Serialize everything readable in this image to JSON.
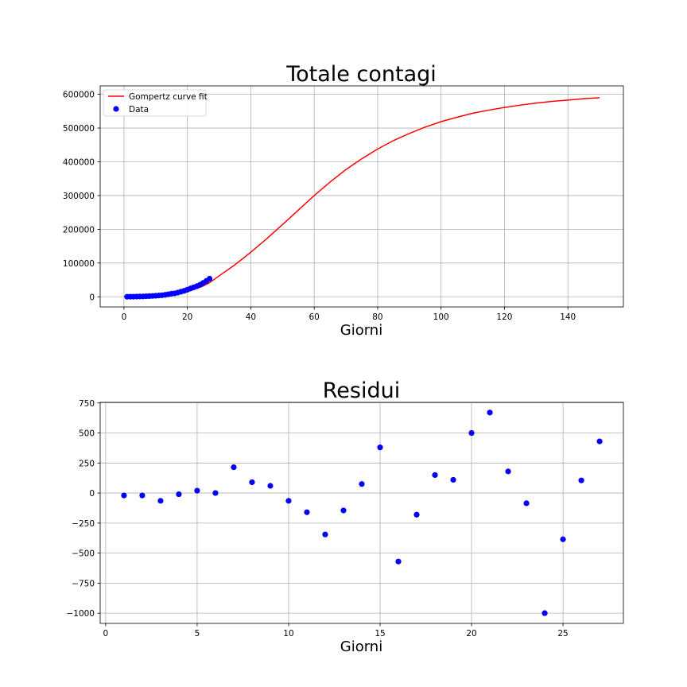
{
  "chart_data": [
    {
      "type": "line",
      "title": "Totale contagi",
      "xlabel": "Giorni",
      "ylabel": "",
      "xlim": [
        -7.5,
        157.5
      ],
      "ylim": [
        -30000,
        625000
      ],
      "xticks": [
        0,
        20,
        40,
        60,
        80,
        100,
        120,
        140
      ],
      "yticks": [
        0,
        100000,
        200000,
        300000,
        400000,
        500000,
        600000
      ],
      "grid": true,
      "legend": "top-left",
      "series": [
        {
          "name": "Gompertz curve fit",
          "kind": "line",
          "color": "#ff0000",
          "x": [
            0,
            5,
            10,
            15,
            20,
            25,
            27,
            30,
            35,
            40,
            45,
            50,
            55,
            60,
            65,
            70,
            75,
            80,
            85,
            90,
            95,
            100,
            105,
            110,
            115,
            120,
            125,
            130,
            135,
            140,
            145,
            150
          ],
          "y": [
            1000,
            2000,
            3500,
            7000,
            15000,
            32000,
            42000,
            62000,
            95000,
            132000,
            172000,
            214000,
            257000,
            300000,
            340000,
            377000,
            409000,
            438000,
            463000,
            484000,
            503000,
            519000,
            532000,
            544000,
            553000,
            561000,
            568000,
            574000,
            579000,
            583000,
            587000,
            590000
          ]
        },
        {
          "name": "Data",
          "kind": "scatter",
          "color": "#0000ff",
          "x": [
            1,
            2,
            3,
            4,
            5,
            6,
            7,
            8,
            9,
            10,
            11,
            12,
            13,
            14,
            15,
            16,
            17,
            18,
            19,
            20,
            21,
            22,
            23,
            24,
            25,
            26,
            27
          ],
          "y": [
            229,
            322,
            400,
            650,
            888,
            1128,
            1694,
            2036,
            2502,
            3089,
            3858,
            4636,
            5883,
            7375,
            9172,
            10149,
            12462,
            15113,
            17660,
            21157,
            24747,
            27980,
            31506,
            35713,
            41035,
            47021,
            53578
          ]
        }
      ]
    },
    {
      "type": "scatter",
      "title": "Residui",
      "xlabel": "Giorni",
      "ylabel": "",
      "xlim": [
        -0.3,
        28.3
      ],
      "ylim": [
        -1085,
        755
      ],
      "xticks": [
        0,
        5,
        10,
        15,
        20,
        25
      ],
      "yticks": [
        -1000,
        -750,
        -500,
        -250,
        0,
        250,
        500,
        750
      ],
      "yticklabels": [
        "−1000",
        "−750",
        "−500",
        "−250",
        "0",
        "250",
        "500",
        "750"
      ],
      "grid": true,
      "series": [
        {
          "color": "#0000ff",
          "x": [
            1,
            2,
            3,
            4,
            5,
            6,
            7,
            8,
            9,
            10,
            11,
            12,
            13,
            14,
            15,
            16,
            17,
            18,
            19,
            20,
            21,
            22,
            23,
            24,
            25,
            26,
            27
          ],
          "y": [
            -20,
            -20,
            -65,
            -10,
            20,
            0,
            215,
            90,
            60,
            -65,
            -160,
            -345,
            -145,
            75,
            380,
            -570,
            -180,
            150,
            110,
            500,
            670,
            180,
            -85,
            -1000,
            -385,
            105,
            430
          ]
        }
      ]
    }
  ]
}
